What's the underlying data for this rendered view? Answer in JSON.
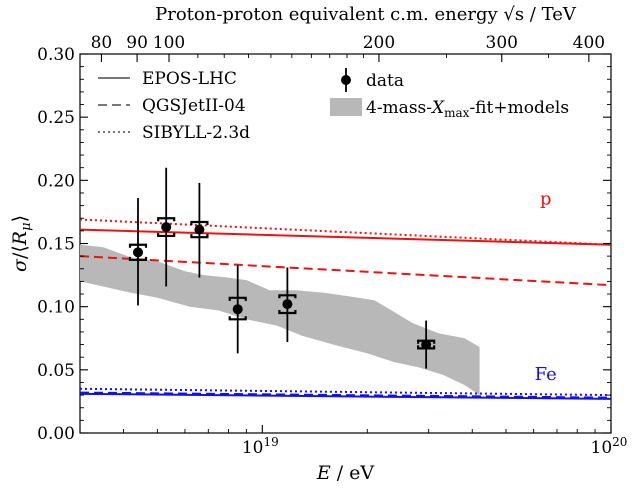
{
  "chart_data": {
    "type": "scatter",
    "xlabel": "E / eV",
    "ylabel": "σ/⟨R_μ⟩",
    "top_xlabel": "Proton-proton equivalent c.m. energy √s / TeV",
    "xscale": "log",
    "xlim": [
      3e+18,
      1e+20
    ],
    "ylim": [
      0.0,
      0.3
    ],
    "x_ticks": [
      {
        "value": 1e+19,
        "base": "10",
        "exp": "19"
      },
      {
        "value": 1e+20,
        "base": "10",
        "exp": "20"
      }
    ],
    "y_ticks": [
      {
        "value": 0.0,
        "label": "0.00"
      },
      {
        "value": 0.05,
        "label": "0.05"
      },
      {
        "value": 0.1,
        "label": "0.10"
      },
      {
        "value": 0.15,
        "label": "0.15"
      },
      {
        "value": 0.2,
        "label": "0.20"
      },
      {
        "value": 0.25,
        "label": "0.25"
      },
      {
        "value": 0.3,
        "label": "0.30"
      }
    ],
    "top_ticks": [
      {
        "value": 80,
        "label": "80"
      },
      {
        "value": 90,
        "label": "90"
      },
      {
        "value": 100,
        "label": "100"
      },
      {
        "value": 200,
        "label": "200"
      },
      {
        "value": 300,
        "label": "300"
      },
      {
        "value": 400,
        "label": "400"
      }
    ],
    "top_minor_ticks": [
      70,
      80,
      90,
      100,
      200,
      300,
      400
    ],
    "series": [
      {
        "name": "EPOS-LHC",
        "style": "solid",
        "color": "#ee1111",
        "x": [
          3e+18,
          1e+20
        ],
        "y": [
          0.161,
          0.149
        ]
      },
      {
        "name": "QGSJetII-04",
        "style": "dashed",
        "color": "#ee1111",
        "x": [
          3e+18,
          1e+20
        ],
        "y": [
          0.14,
          0.117
        ]
      },
      {
        "name": "SIBYLL-2.3d",
        "style": "dotted",
        "color": "#ee1111",
        "x": [
          3e+18,
          1e+20
        ],
        "y": [
          0.169,
          0.149
        ]
      },
      {
        "name": "EPOS-LHC",
        "style": "solid",
        "color": "#1111ee",
        "x": [
          3e+18,
          1e+20
        ],
        "y": [
          0.031,
          0.027
        ]
      },
      {
        "name": "QGSJetII-04",
        "style": "dashed",
        "color": "#1111ee",
        "x": [
          3e+18,
          1e+20
        ],
        "y": [
          0.032,
          0.028
        ]
      },
      {
        "name": "SIBYLL-2.3d",
        "style": "dotted",
        "color": "#1111ee",
        "x": [
          3e+18,
          1e+20
        ],
        "y": [
          0.035,
          0.03
        ]
      }
    ],
    "band": {
      "name": "4-mass-Xmax-fit+models",
      "color": "#b8b8b8",
      "upper": [
        [
          3e+18,
          0.149
        ],
        [
          3.5e+18,
          0.147
        ],
        [
          4.2e+18,
          0.139
        ],
        [
          5e+18,
          0.136
        ],
        [
          6e+18,
          0.128
        ],
        [
          6.8e+18,
          0.125
        ],
        [
          8e+18,
          0.123
        ],
        [
          9e+18,
          0.121
        ],
        [
          1.05e+19,
          0.113
        ],
        [
          1.25e+19,
          0.113
        ],
        [
          1.5e+19,
          0.111
        ],
        [
          1.8e+19,
          0.108
        ],
        [
          2.1e+19,
          0.105
        ],
        [
          2.35e+19,
          0.097
        ],
        [
          2.7e+19,
          0.087
        ],
        [
          3.2e+19,
          0.079
        ],
        [
          3.8e+19,
          0.075
        ],
        [
          4.2e+19,
          0.068
        ]
      ],
      "lower": [
        [
          4.2e+19,
          0.03
        ],
        [
          3.8e+19,
          0.038
        ],
        [
          3.3e+19,
          0.046
        ],
        [
          2.8e+19,
          0.052
        ],
        [
          2.4e+19,
          0.056
        ],
        [
          2e+19,
          0.063
        ],
        [
          1.6e+19,
          0.07
        ],
        [
          1.3e+19,
          0.077
        ],
        [
          1.1e+19,
          0.085
        ],
        [
          9e+18,
          0.09
        ],
        [
          7.5e+18,
          0.097
        ],
        [
          6.2e+18,
          0.1
        ],
        [
          5e+18,
          0.107
        ],
        [
          4.2e+18,
          0.111
        ],
        [
          3.5e+18,
          0.116
        ],
        [
          3e+18,
          0.12
        ]
      ]
    },
    "data_points": [
      {
        "x": 4.4e+18,
        "y": 0.143,
        "stat_lo": 0.101,
        "stat_hi": 0.186,
        "sys_lo": 0.137,
        "sys_hi": 0.149
      },
      {
        "x": 5.3e+18,
        "y": 0.163,
        "stat_lo": 0.116,
        "stat_hi": 0.21,
        "sys_lo": 0.156,
        "sys_hi": 0.17
      },
      {
        "x": 6.6e+18,
        "y": 0.161,
        "stat_lo": 0.123,
        "stat_hi": 0.198,
        "sys_lo": 0.155,
        "sys_hi": 0.167
      },
      {
        "x": 8.5e+18,
        "y": 0.098,
        "stat_lo": 0.063,
        "stat_hi": 0.133,
        "sys_lo": 0.09,
        "sys_hi": 0.107
      },
      {
        "x": 1.18e+19,
        "y": 0.102,
        "stat_lo": 0.072,
        "stat_hi": 0.131,
        "sys_lo": 0.095,
        "sys_hi": 0.109
      },
      {
        "x": 2.95e+19,
        "y": 0.07,
        "stat_lo": 0.051,
        "stat_hi": 0.089,
        "sys_lo": 0.067,
        "sys_hi": 0.073
      }
    ],
    "legend": {
      "placement": "top",
      "entries": [
        {
          "label": "EPOS-LHC",
          "kind": "solid"
        },
        {
          "label": "QGSJetII-04",
          "kind": "dashed"
        },
        {
          "label": "SIBYLL-2.3d",
          "kind": "dotted"
        },
        {
          "label": "data",
          "kind": "marker"
        },
        {
          "label": "4-mass-",
          "label_math": "X",
          "label_sub": "max",
          "label_suffix": "-fit+models",
          "kind": "band"
        }
      ]
    },
    "annotations": [
      {
        "text": "p",
        "color": "#ee1111",
        "x": 6.5e+19,
        "y": 0.181
      },
      {
        "text": "Fe",
        "color": "#1111ee",
        "x": 6.5e+19,
        "y": 0.042
      }
    ]
  }
}
